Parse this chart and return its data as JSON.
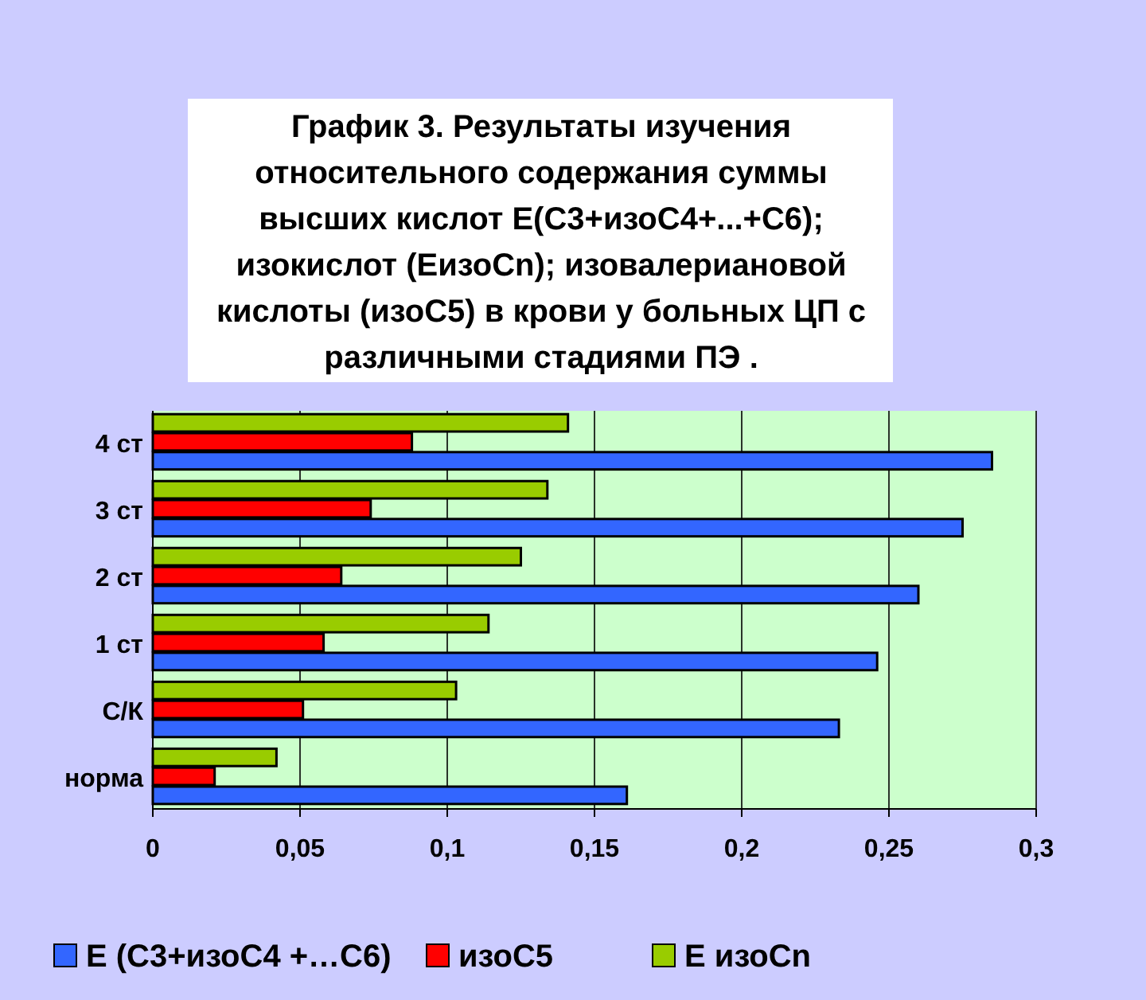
{
  "chart_data": {
    "type": "bar",
    "orientation": "horizontal",
    "title": "График 3. Результаты изучения\nотносительного содержания суммы\nвысших кислот Е(С3+изоС4+...+С6);\nизокислот (ЕизоСn); изовалериановой\nкислоты (изоС5) в крови у больных ЦП с\nразличными стадиями ПЭ .",
    "categories": [
      "4 ст",
      "3 ст",
      "2 ст",
      "1 ст",
      "С/К",
      "норма"
    ],
    "series": [
      {
        "name": "Е (С3+изоС4 +…С6)",
        "color": "#3366ff",
        "values": [
          0.285,
          0.275,
          0.26,
          0.246,
          0.233,
          0.161
        ]
      },
      {
        "name": "изоС5",
        "color": "#ff0000",
        "values": [
          0.088,
          0.074,
          0.064,
          0.058,
          0.051,
          0.021
        ]
      },
      {
        "name": "Е изоСn",
        "color": "#99cc00",
        "values": [
          0.141,
          0.134,
          0.125,
          0.114,
          0.103,
          0.042
        ]
      }
    ],
    "xlim": [
      0,
      0.3
    ],
    "xticks": [
      0,
      {
        "value": 0.05,
        "label": "0,05"
      },
      {
        "value": 0.1,
        "label": "0,1"
      },
      {
        "value": 0.15,
        "label": "0,15"
      },
      {
        "value": 0.2,
        "label": "0,2"
      },
      {
        "value": 0.25,
        "label": "0,25"
      },
      {
        "value": 0.3,
        "label": "0,3"
      }
    ],
    "grid": "x",
    "legend": "bottom"
  }
}
